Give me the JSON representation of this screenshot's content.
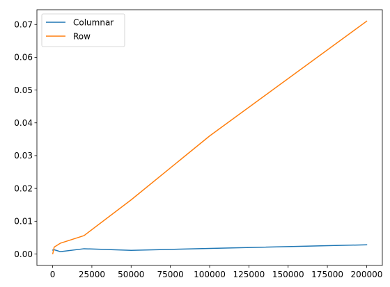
{
  "chart_data": {
    "type": "line",
    "title": "",
    "xlabel": "",
    "ylabel": "",
    "xlim": [
      -10000,
      210000
    ],
    "ylim": [
      -0.0035,
      0.0745
    ],
    "x_ticks": [
      0,
      25000,
      50000,
      75000,
      100000,
      125000,
      150000,
      175000,
      200000
    ],
    "x_tick_labels": [
      "0",
      "25000",
      "50000",
      "75000",
      "100000",
      "125000",
      "150000",
      "175000",
      "200000"
    ],
    "y_ticks": [
      0.0,
      0.01,
      0.02,
      0.03,
      0.04,
      0.05,
      0.06,
      0.07
    ],
    "y_tick_labels": [
      "0.00",
      "0.01",
      "0.02",
      "0.03",
      "0.04",
      "0.05",
      "0.06",
      "0.07"
    ],
    "grid": false,
    "legend_position": "top-left",
    "series": [
      {
        "name": "Columnar",
        "color": "#1f77b4",
        "x": [
          100,
          1000,
          5000,
          20000,
          50000,
          100000,
          200000
        ],
        "y": [
          0.0012,
          0.0013,
          0.0007,
          0.0016,
          0.0011,
          0.0017,
          0.0028
        ]
      },
      {
        "name": "Row",
        "color": "#ff7f0e",
        "x": [
          100,
          1000,
          5000,
          20000,
          50000,
          100000,
          200000
        ],
        "y": [
          0.0001,
          0.0021,
          0.0033,
          0.0056,
          0.0165,
          0.036,
          0.071
        ]
      }
    ]
  }
}
